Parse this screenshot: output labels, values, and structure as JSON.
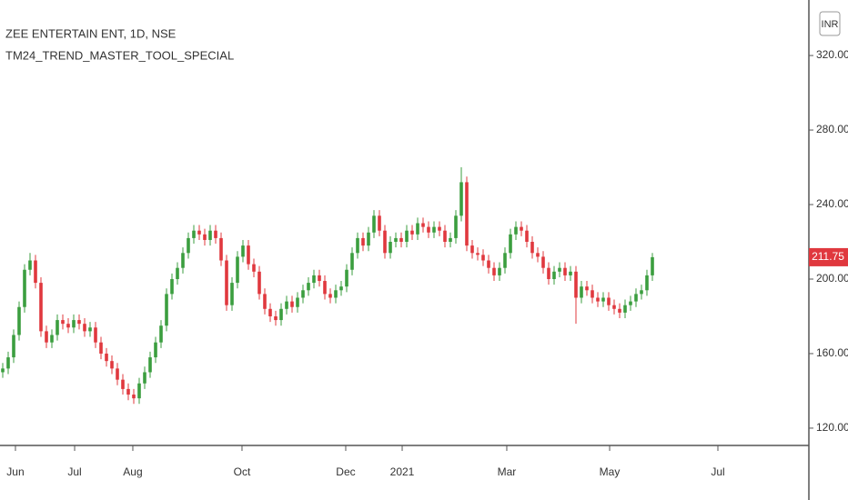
{
  "chart_data": {
    "type": "candlestick",
    "title": "ZEE ENTERTAIN ENT, 1D, NSE",
    "subtitle": "TM24_TREND_MASTER_TOOL_SPECIAL",
    "currency": "INR",
    "up_color": "#3b9e3f",
    "down_color": "#e0383e",
    "open": [
      150,
      152,
      158,
      170,
      185,
      205,
      210,
      198,
      172,
      166,
      170,
      178,
      176,
      174,
      178,
      176,
      172,
      174,
      166,
      160,
      156,
      152,
      146,
      141,
      138,
      136,
      144,
      150,
      158,
      166,
      175,
      192,
      200,
      206,
      214,
      222,
      226,
      224,
      221,
      226,
      222,
      210,
      186,
      198,
      212,
      218,
      208,
      204,
      192,
      184,
      180,
      178,
      184,
      188,
      185,
      190,
      194,
      198,
      202,
      199,
      192,
      190,
      194,
      196,
      205,
      214,
      222,
      218,
      225,
      234,
      226,
      214,
      220,
      222,
      220,
      226,
      224,
      230,
      228,
      225,
      228,
      226,
      220,
      222,
      234,
      252,
      218,
      214,
      213,
      210,
      206,
      202,
      206,
      214,
      224,
      228,
      226,
      220,
      214,
      212,
      206,
      200,
      204,
      206,
      202,
      204,
      190,
      196,
      194,
      190,
      188,
      190,
      186,
      184,
      182,
      186,
      188,
      192,
      194,
      202
    ],
    "high": [
      155,
      161,
      173,
      188,
      208,
      214,
      213,
      201,
      175,
      173,
      181,
      181,
      179,
      181,
      181,
      179,
      177,
      177,
      169,
      163,
      159,
      155,
      149,
      144,
      141,
      147,
      153,
      161,
      169,
      178,
      195,
      203,
      209,
      217,
      225,
      229,
      229,
      227,
      229,
      229,
      225,
      213,
      201,
      215,
      221,
      221,
      211,
      207,
      195,
      187,
      183,
      187,
      191,
      191,
      193,
      197,
      201,
      205,
      205,
      202,
      195,
      197,
      199,
      208,
      217,
      225,
      225,
      228,
      237,
      237,
      229,
      223,
      225,
      225,
      229,
      229,
      233,
      233,
      231,
      231,
      231,
      229,
      225,
      237,
      260,
      255,
      221,
      217,
      216,
      213,
      209,
      209,
      217,
      227,
      231,
      231,
      229,
      223,
      217,
      215,
      209,
      207,
      209,
      209,
      207,
      207,
      199,
      199,
      197,
      193,
      193,
      193,
      189,
      187,
      189,
      191,
      195,
      197,
      205,
      214
    ],
    "low": [
      147,
      149,
      155,
      167,
      182,
      202,
      195,
      169,
      163,
      163,
      167,
      173,
      171,
      171,
      173,
      169,
      169,
      163,
      157,
      153,
      149,
      143,
      138,
      135,
      133,
      133,
      141,
      147,
      155,
      163,
      172,
      189,
      197,
      203,
      211,
      219,
      221,
      218,
      218,
      219,
      207,
      183,
      183,
      195,
      209,
      205,
      201,
      189,
      181,
      177,
      175,
      175,
      181,
      182,
      182,
      187,
      191,
      195,
      196,
      189,
      187,
      187,
      191,
      193,
      202,
      211,
      215,
      215,
      222,
      223,
      211,
      211,
      217,
      217,
      217,
      221,
      221,
      225,
      222,
      222,
      223,
      217,
      217,
      219,
      231,
      215,
      211,
      210,
      207,
      203,
      199,
      199,
      203,
      211,
      221,
      223,
      217,
      211,
      209,
      203,
      197,
      197,
      201,
      199,
      199,
      176,
      187,
      191,
      187,
      185,
      185,
      183,
      181,
      179,
      179,
      183,
      185,
      189,
      191,
      199
    ],
    "close": [
      152,
      158,
      170,
      185,
      205,
      210,
      198,
      172,
      166,
      170,
      178,
      176,
      174,
      178,
      176,
      172,
      174,
      166,
      160,
      156,
      152,
      146,
      141,
      138,
      136,
      144,
      150,
      158,
      166,
      175,
      192,
      200,
      206,
      214,
      222,
      226,
      224,
      221,
      226,
      222,
      210,
      186,
      198,
      212,
      218,
      208,
      204,
      192,
      184,
      180,
      178,
      184,
      188,
      185,
      190,
      194,
      198,
      202,
      199,
      192,
      190,
      194,
      196,
      205,
      214,
      222,
      218,
      225,
      234,
      226,
      214,
      220,
      222,
      220,
      226,
      224,
      230,
      228,
      225,
      228,
      226,
      220,
      222,
      234,
      252,
      218,
      214,
      213,
      210,
      206,
      202,
      206,
      214,
      224,
      228,
      226,
      220,
      214,
      212,
      206,
      200,
      204,
      206,
      202,
      204,
      190,
      196,
      194,
      190,
      188,
      190,
      186,
      184,
      182,
      186,
      188,
      192,
      194,
      202,
      211.75
    ],
    "xlim": [
      -0.5,
      147.5
    ],
    "xticks": [
      {
        "value": 2.33,
        "label": "Jun"
      },
      {
        "value": 13.17,
        "label": "Jul"
      },
      {
        "value": 23.83,
        "label": "Aug"
      },
      {
        "value": 43.83,
        "label": "Oct"
      },
      {
        "value": 62.83,
        "label": "Dec"
      },
      {
        "value": 73.17,
        "label": "2021"
      },
      {
        "value": 92.33,
        "label": "Mar"
      },
      {
        "value": 111.17,
        "label": "May"
      },
      {
        "value": 131,
        "label": "Jul"
      }
    ],
    "ylim": [
      110.7,
      349.8
    ],
    "yticks": [
      {
        "value": 120,
        "label": "120.00"
      },
      {
        "value": 160,
        "label": "160.00"
      },
      {
        "value": 200,
        "label": "200.00"
      },
      {
        "value": 240,
        "label": "240.00"
      },
      {
        "value": 280,
        "label": "280.00"
      },
      {
        "value": 320,
        "label": "320.00"
      }
    ]
  }
}
